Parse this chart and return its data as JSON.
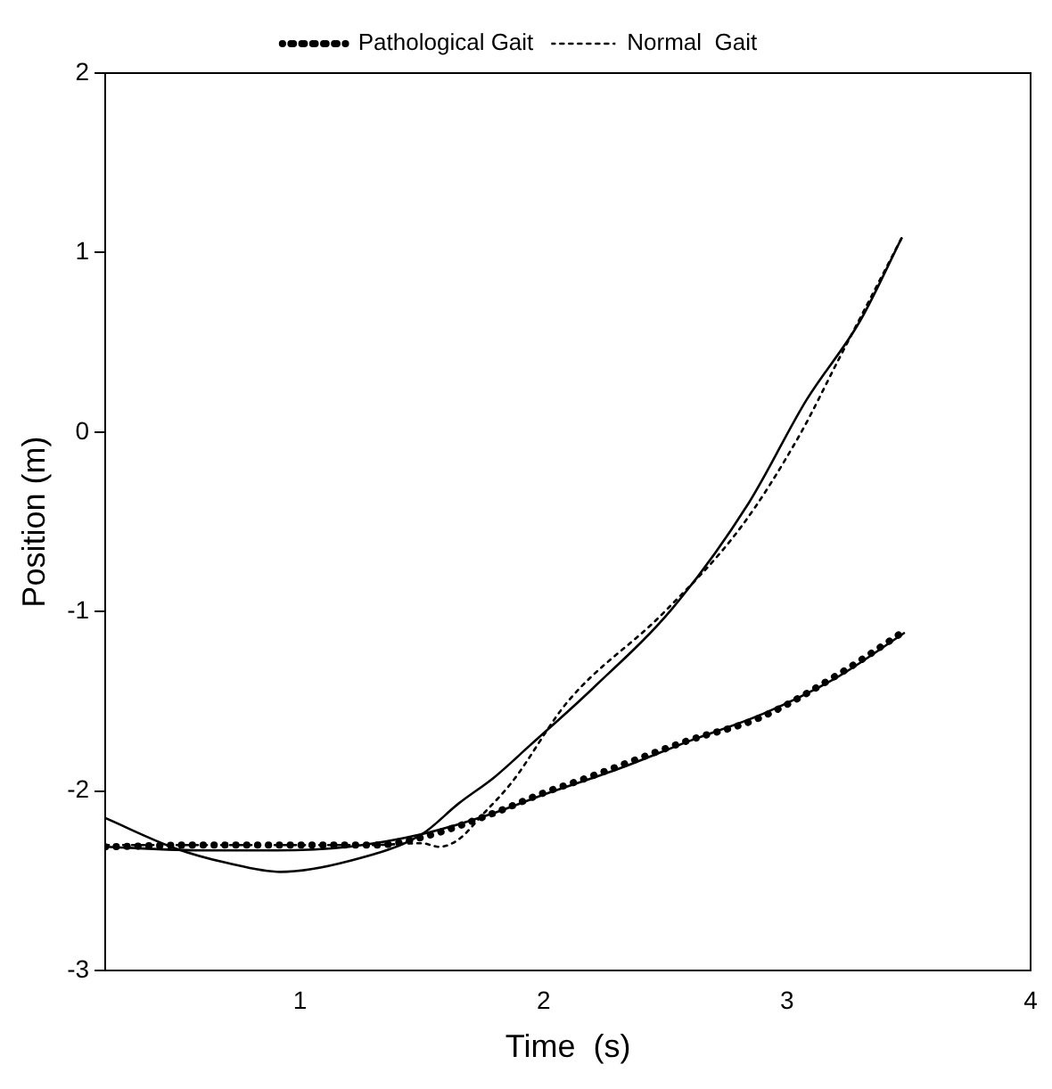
{
  "chart_data": {
    "type": "line",
    "xlabel": "Time  (s)",
    "ylabel": "Position (m)",
    "xlim": [
      0.2,
      4
    ],
    "xticks": [
      1,
      2,
      3,
      4
    ],
    "ylim": [
      -3,
      2
    ],
    "yticks": [
      -3,
      -2,
      -1,
      0,
      1,
      2
    ],
    "grid": false,
    "legend": "top",
    "marker": "none",
    "series": [
      {
        "name": "Pathological Gait",
        "color": "#000000",
        "line_style": "dotted",
        "x": [
          0.2,
          0.6,
          1.0,
          1.32,
          1.52,
          1.8,
          2.0,
          2.17,
          2.59,
          2.89,
          3.21,
          3.48
        ],
        "values": [
          -2.31,
          -2.3,
          -2.3,
          -2.3,
          -2.25,
          -2.12,
          -2.01,
          -1.93,
          -1.72,
          -1.59,
          -1.35,
          -1.11
        ]
      },
      {
        "name": "Normal  Gait",
        "color": "#000000",
        "line_style": "dashed",
        "x": [
          0.2,
          0.6,
          1.0,
          1.3,
          1.5,
          1.57,
          1.65,
          1.75,
          1.87,
          2.1,
          2.49,
          2.81,
          3.05,
          3.21,
          3.47
        ],
        "values": [
          -2.3,
          -2.3,
          -2.3,
          -2.3,
          -2.29,
          -2.31,
          -2.27,
          -2.13,
          -1.95,
          -1.5,
          -1.01,
          -0.53,
          -0.02,
          0.4,
          1.08
        ]
      },
      {
        "color": "#000000",
        "line_style": "solid",
        "x": [
          0.2,
          0.49,
          0.7,
          0.92,
          1.2,
          1.5,
          1.65,
          1.8,
          1.94,
          2.2,
          2.53,
          2.84,
          3.08,
          3.3,
          3.47
        ],
        "values": [
          -2.15,
          -2.32,
          -2.4,
          -2.45,
          -2.39,
          -2.24,
          -2.07,
          -1.92,
          -1.75,
          -1.43,
          -0.98,
          -0.4,
          0.18,
          0.62,
          1.08
        ]
      },
      {
        "color": "#000000",
        "line_style": "solid",
        "x": [
          0.2,
          0.6,
          0.9,
          1.2,
          1.5,
          1.8,
          2.0,
          2.3,
          2.6,
          2.9,
          3.2,
          3.48
        ],
        "values": [
          -2.31,
          -2.33,
          -2.33,
          -2.31,
          -2.24,
          -2.12,
          -2.02,
          -1.88,
          -1.72,
          -1.57,
          -1.37,
          -1.12
        ]
      }
    ]
  }
}
